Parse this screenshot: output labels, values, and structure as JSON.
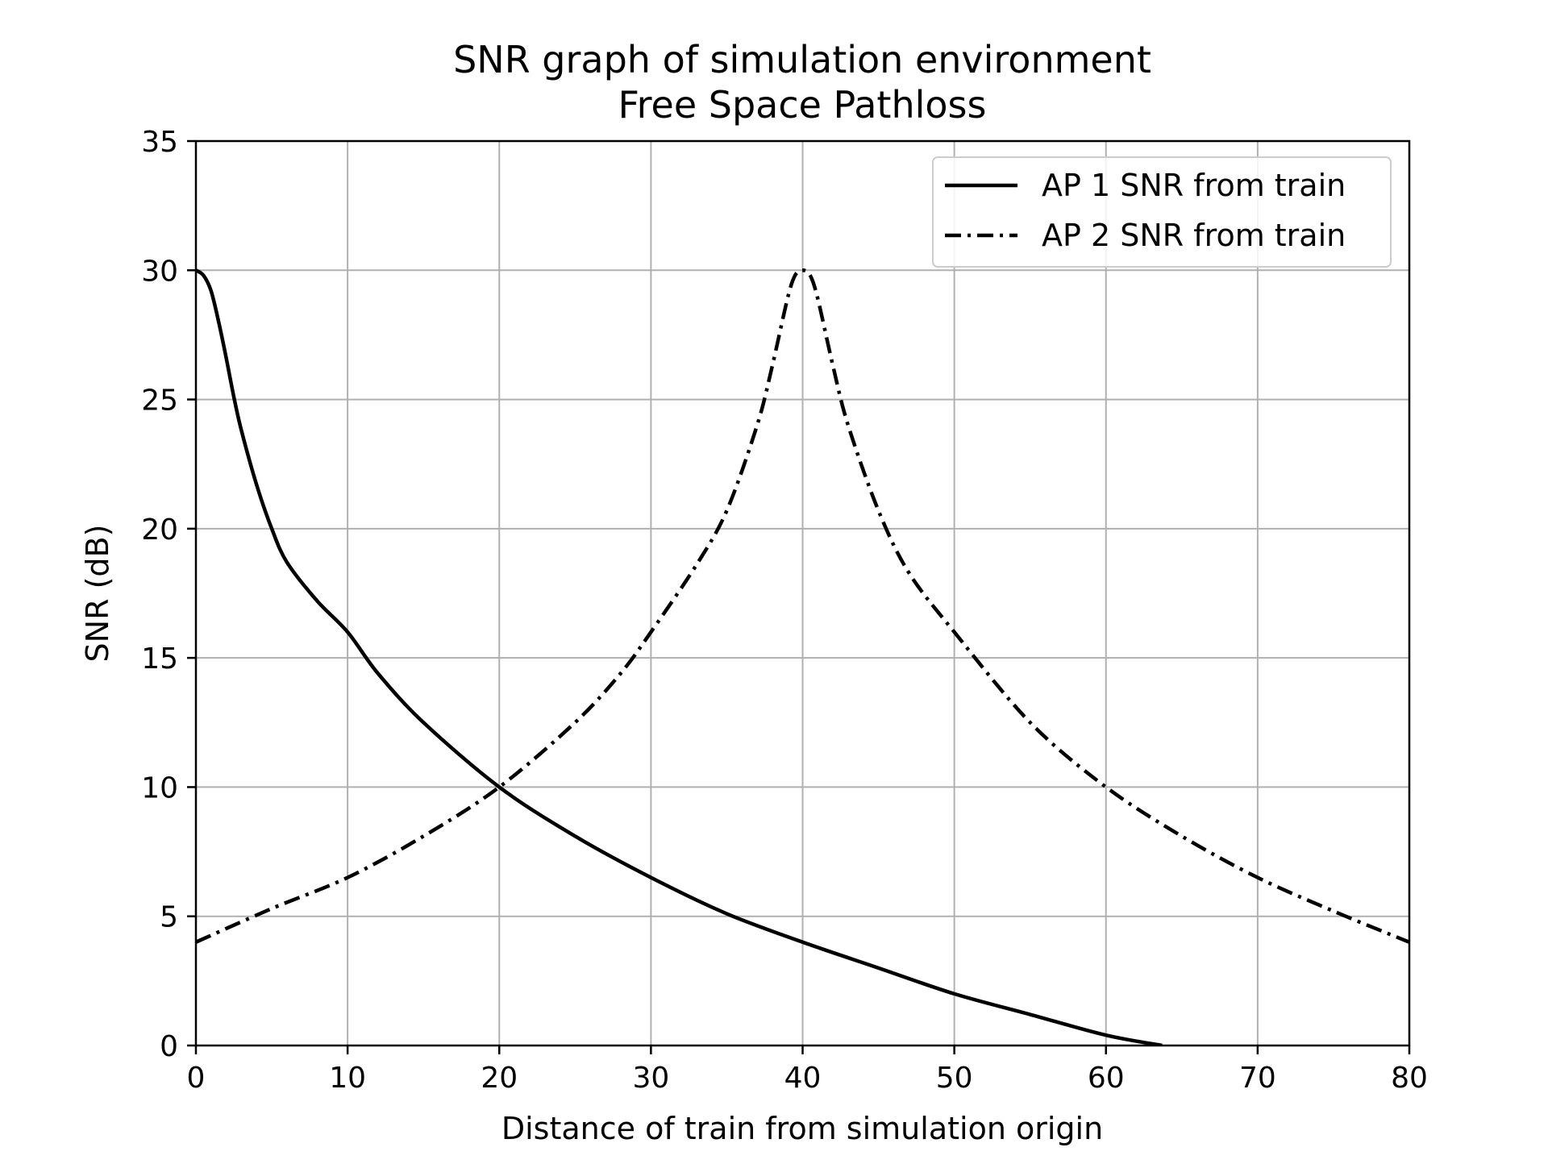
{
  "chart_data": {
    "type": "line",
    "title": "SNR graph of simulation environment",
    "subtitle": "Free Space Pathloss",
    "xlabel": "Distance of train from simulation origin",
    "ylabel": "SNR (dB)",
    "xlim": [
      0,
      80
    ],
    "ylim": [
      0,
      35
    ],
    "xticks": [
      0,
      10,
      20,
      30,
      40,
      50,
      60,
      70,
      80
    ],
    "yticks": [
      0,
      5,
      10,
      15,
      20,
      25,
      30,
      35
    ],
    "grid": true,
    "legend_position": "top-right",
    "series": [
      {
        "name": "AP 1 SNR from train",
        "line_style": "solid",
        "color": "#000000",
        "x": [
          0,
          0.5,
          1,
          1.5,
          2,
          2.5,
          3,
          4,
          5,
          6,
          8,
          10,
          12,
          15,
          20,
          25,
          30,
          35,
          40,
          45,
          50,
          55,
          60,
          63.7
        ],
        "values": [
          30,
          29.8,
          29.2,
          28.0,
          26.6,
          25.1,
          23.8,
          21.7,
          20.0,
          18.7,
          17.2,
          16.0,
          14.4,
          12.5,
          10.0,
          8.1,
          6.5,
          5.1,
          4.0,
          3.0,
          2.0,
          1.2,
          0.4,
          0
        ]
      },
      {
        "name": "AP 2 SNR from train",
        "line_style": "dash-dot",
        "color": "#000000",
        "x": [
          0,
          5,
          10,
          15,
          20,
          25,
          28,
          30,
          33,
          35,
          37,
          38,
          39,
          39.5,
          40,
          40.5,
          41,
          42,
          43,
          45,
          47,
          50,
          55,
          60,
          65,
          70,
          75,
          80
        ],
        "values": [
          4.0,
          5.3,
          6.5,
          8.1,
          10.0,
          12.5,
          14.4,
          16.0,
          18.6,
          20.7,
          24.0,
          26.3,
          28.9,
          29.8,
          30,
          29.8,
          28.9,
          26.3,
          24.0,
          20.7,
          18.3,
          16.0,
          12.5,
          10.0,
          8.1,
          6.5,
          5.2,
          4.0
        ]
      }
    ]
  }
}
